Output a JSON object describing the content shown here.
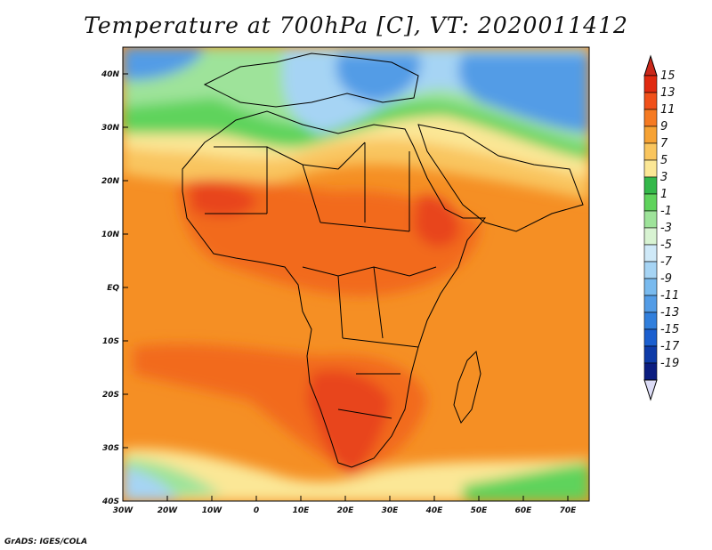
{
  "title": "Temperature at 700hPa [C], VT: 2020011412",
  "credit": "GrADS: IGES/COLA",
  "lat_labels": [
    "40N",
    "30N",
    "20N",
    "10N",
    "EQ",
    "10S",
    "20S",
    "30S",
    "40S"
  ],
  "lon_labels": [
    "30W",
    "20W",
    "10W",
    "0",
    "10E",
    "20E",
    "30E",
    "40E",
    "50E",
    "60E",
    "70E"
  ],
  "colorbar": {
    "labels": [
      "15",
      "13",
      "11",
      "9",
      "7",
      "5",
      "3",
      "1",
      "-1",
      "-3",
      "-5",
      "-7",
      "-9",
      "-11",
      "-13",
      "-15",
      "-17",
      "-19"
    ],
    "colors": [
      "#e02a10",
      "#f0501a",
      "#f57a22",
      "#f6a234",
      "#f9c55e",
      "#fbe796",
      "#34b84a",
      "#5fd35c",
      "#9ee39a",
      "#d8f3d2",
      "#cfe9f8",
      "#a6d4f4",
      "#79baee",
      "#539ce6",
      "#317fdc",
      "#1b5fcf",
      "#0e3ba8",
      "#0b1d80"
    ]
  },
  "map_colors": {
    "ocean_base": "#f58f24",
    "warm": "#f26a1e",
    "hot": "#e8441a",
    "pale": "#f9c55e",
    "cream": "#fbe796",
    "green": "#5fd35c",
    "light_green": "#9ee39a",
    "light_blue": "#a6d4f4",
    "blue": "#539ce6",
    "deep_blue": "#317fdc"
  }
}
